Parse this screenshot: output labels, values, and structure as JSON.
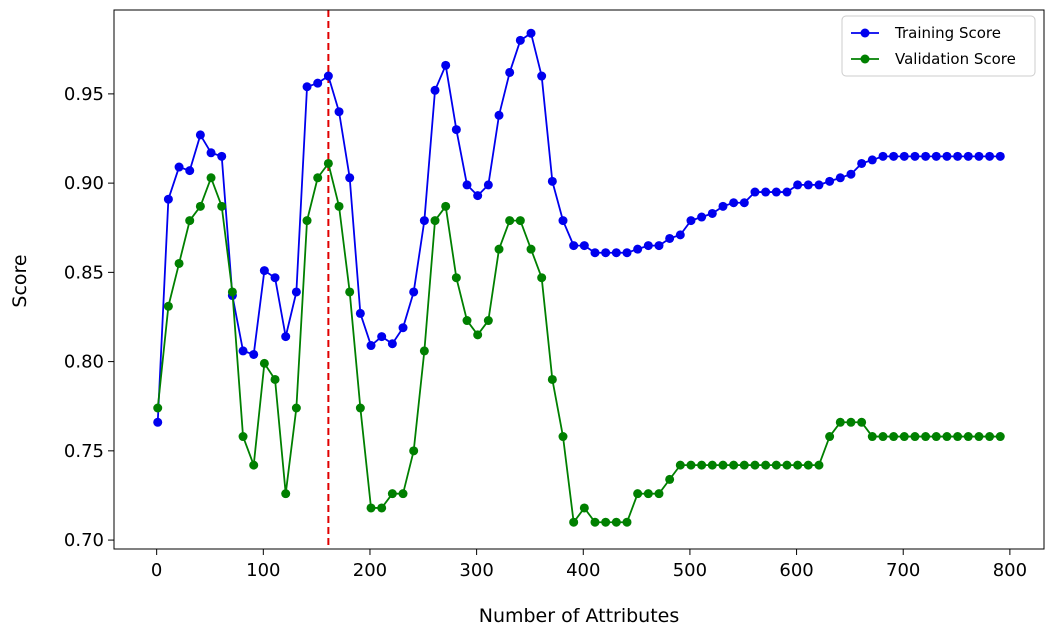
{
  "chart_data": {
    "type": "line",
    "xlabel": "Number of Attributes",
    "ylabel": "Score",
    "xlim": [
      -40,
      832
    ],
    "ylim": [
      0.695,
      0.997
    ],
    "x_ticks": [
      0,
      100,
      200,
      300,
      400,
      500,
      600,
      700,
      800
    ],
    "y_ticks": [
      0.7,
      0.75,
      0.8,
      0.85,
      0.9,
      0.95
    ],
    "x_tick_labels": [
      "0",
      "100",
      "200",
      "300",
      "400",
      "500",
      "600",
      "700",
      "800"
    ],
    "y_tick_labels": [
      "0.70",
      "0.75",
      "0.80",
      "0.85",
      "0.90",
      "0.95"
    ],
    "grid": false,
    "legend_position": "top-right",
    "reference_line": {
      "x": 161,
      "color": "#e00000",
      "style": "dashed"
    },
    "x": [
      1,
      11,
      21,
      31,
      41,
      51,
      61,
      71,
      81,
      91,
      101,
      111,
      121,
      131,
      141,
      151,
      161,
      171,
      181,
      191,
      201,
      211,
      221,
      231,
      241,
      251,
      261,
      271,
      281,
      291,
      301,
      311,
      321,
      331,
      341,
      351,
      361,
      371,
      381,
      391,
      401,
      411,
      421,
      431,
      441,
      451,
      461,
      471,
      481,
      491,
      501,
      511,
      521,
      531,
      541,
      551,
      561,
      571,
      581,
      591,
      601,
      611,
      621,
      631,
      641,
      651,
      661,
      671,
      681,
      691,
      701,
      711,
      721,
      731,
      741,
      751,
      761,
      771,
      781,
      791
    ],
    "series": [
      {
        "name": "Training Score",
        "color": "#0000ee",
        "values": [
          0.766,
          0.891,
          0.909,
          0.907,
          0.927,
          0.917,
          0.915,
          0.837,
          0.806,
          0.804,
          0.851,
          0.847,
          0.814,
          0.839,
          0.954,
          0.956,
          0.96,
          0.94,
          0.903,
          0.827,
          0.809,
          0.814,
          0.81,
          0.819,
          0.839,
          0.879,
          0.952,
          0.966,
          0.93,
          0.899,
          0.893,
          0.899,
          0.938,
          0.962,
          0.98,
          0.984,
          0.96,
          0.901,
          0.879,
          0.865,
          0.865,
          0.861,
          0.861,
          0.861,
          0.861,
          0.863,
          0.865,
          0.865,
          0.869,
          0.871,
          0.879,
          0.881,
          0.883,
          0.887,
          0.889,
          0.889,
          0.895,
          0.895,
          0.895,
          0.895,
          0.899,
          0.899,
          0.899,
          0.901,
          0.903,
          0.905,
          0.911,
          0.913,
          0.915,
          0.915,
          0.915,
          0.915,
          0.915,
          0.915,
          0.915,
          0.915,
          0.915,
          0.915,
          0.915,
          0.915
        ]
      },
      {
        "name": "Validation Score",
        "color": "#008000",
        "values": [
          0.774,
          0.831,
          0.855,
          0.879,
          0.887,
          0.903,
          0.887,
          0.839,
          0.758,
          0.742,
          0.799,
          0.79,
          0.726,
          0.774,
          0.879,
          0.903,
          0.911,
          0.887,
          0.839,
          0.774,
          0.718,
          0.718,
          0.726,
          0.726,
          0.75,
          0.806,
          0.879,
          0.887,
          0.847,
          0.823,
          0.815,
          0.823,
          0.863,
          0.879,
          0.879,
          0.863,
          0.847,
          0.79,
          0.758,
          0.71,
          0.718,
          0.71,
          0.71,
          0.71,
          0.71,
          0.726,
          0.726,
          0.726,
          0.734,
          0.742,
          0.742,
          0.742,
          0.742,
          0.742,
          0.742,
          0.742,
          0.742,
          0.742,
          0.742,
          0.742,
          0.742,
          0.742,
          0.742,
          0.758,
          0.766,
          0.766,
          0.766,
          0.758,
          0.758,
          0.758,
          0.758,
          0.758,
          0.758,
          0.758,
          0.758,
          0.758,
          0.758,
          0.758,
          0.758,
          0.758
        ]
      }
    ]
  }
}
